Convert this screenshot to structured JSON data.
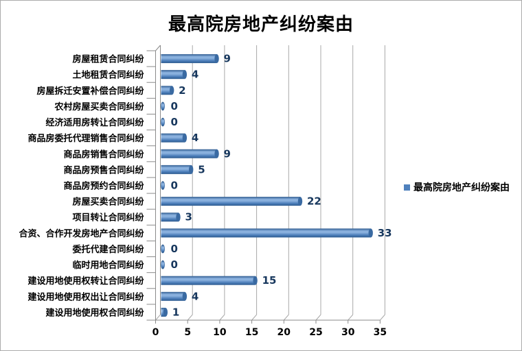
{
  "frame": {
    "background": "#FFFFFF",
    "border_color": "#ABABAB"
  },
  "chart_data": {
    "type": "bar",
    "orientation": "horizontal",
    "style": "3d-cylinder",
    "title": "最高院房地产纠纷案由",
    "xlabel": "",
    "ylabel": "",
    "categories": [
      "房屋租赁合同纠纷",
      "土地租赁合同纠纷",
      "房屋拆迁安置补偿合同纠纷",
      "农村房屋买卖合同纠纷",
      "经济适用房转让合同纠纷",
      "商品房委托代理销售合同纠纷",
      "商品房销售合同纠纷",
      "商品房预售合同纠纷",
      "商品房预约合同纠纷",
      "房屋买卖合同纠纷",
      "项目转让合同纠纷",
      "合资、合作开发房地产合同纠纷",
      "委托代建合同纠纷",
      "临时用地合同纠纷",
      "建设用地使用权转让合同纠纷",
      "建设用地使用权出让合同纠纷",
      "建设用地使用权合同纠纷"
    ],
    "values": [
      9,
      4,
      2,
      0,
      0,
      4,
      9,
      5,
      0,
      22,
      3,
      33,
      0,
      0,
      15,
      4,
      1
    ],
    "xlim": [
      0,
      35
    ],
    "xticks": [
      0,
      5,
      10,
      15,
      20,
      25,
      30,
      35
    ],
    "grid": true,
    "legend": {
      "position": "right",
      "items": [
        {
          "label": "最高院房地产纠纷案由",
          "color": "#4F81BD"
        }
      ]
    },
    "colors": {
      "bar": "#4F81BD",
      "bar_dark": "#2E5B8F",
      "bar_light": "#8AB1DE",
      "bar_mid": "#4A7CB8",
      "bar_cap": "#3A6AA2",
      "value_label": "#17375D",
      "gridline": "#A8A8A8",
      "axis": "#8A8A8A",
      "text": "#000000"
    }
  }
}
